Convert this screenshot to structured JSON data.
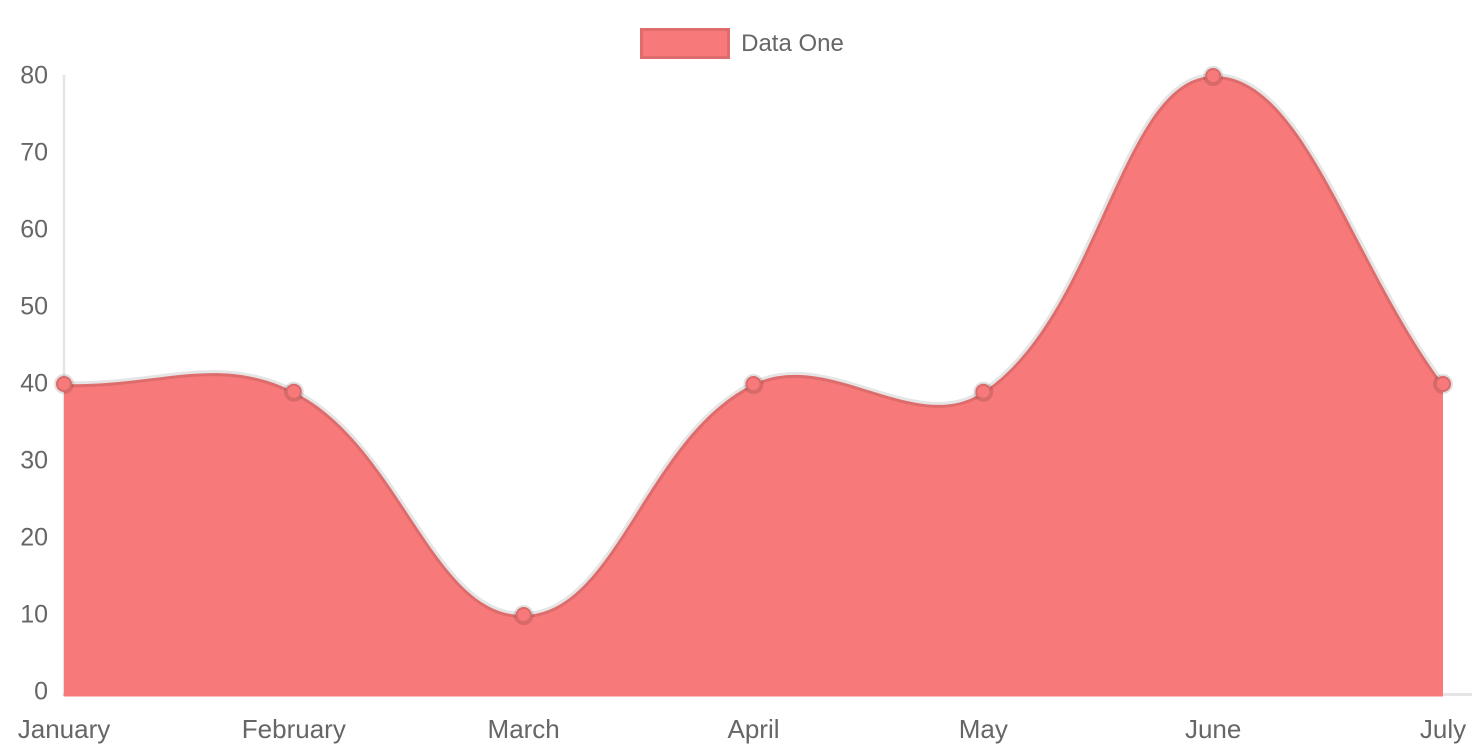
{
  "legend": {
    "position": "top",
    "items": [
      {
        "label": "Data One",
        "swatch_color": "#f87979",
        "swatch_border_color": "rgba(0,0,0,0.10)"
      }
    ]
  },
  "chart_data": {
    "type": "area",
    "title": "",
    "categories": [
      "January",
      "February",
      "March",
      "April",
      "May",
      "June",
      "July"
    ],
    "series": [
      {
        "name": "Data One",
        "values": [
          40,
          39,
          10,
          40,
          39,
          80,
          40
        ],
        "fill_color": "#f87979",
        "line_color": "rgba(0,0,0,0.10)",
        "point_fill_color": "#f87979",
        "point_border_color": "rgba(0,0,0,0.12)"
      }
    ],
    "xlabel": "",
    "ylabel": "",
    "ylim": [
      0,
      80
    ],
    "y_ticks": [
      0,
      10,
      20,
      30,
      40,
      50,
      60,
      70,
      80
    ],
    "grid": false,
    "smooth": true,
    "tension": 0.4,
    "legend_position": "top"
  },
  "colors": {
    "text": "#666666",
    "axis_line": "rgba(0,0,0,0.10)",
    "background": "#ffffff"
  }
}
